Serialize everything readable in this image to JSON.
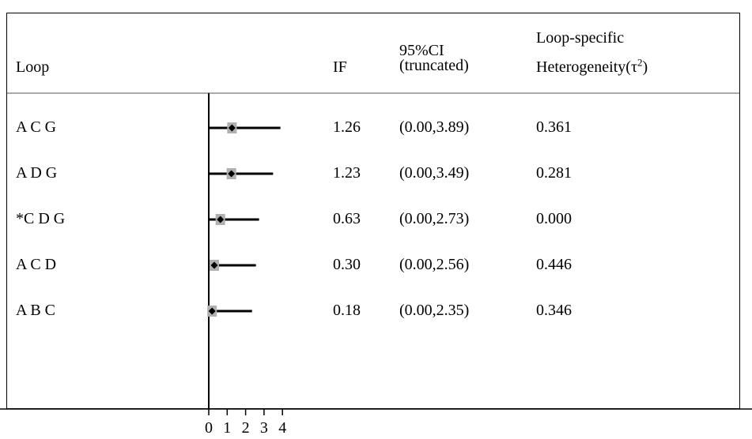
{
  "header": {
    "loop": "Loop",
    "if": "IF",
    "ci_line1": "95%CI",
    "ci_line2": "(truncated)",
    "het_line1": "Loop-specific",
    "het_line2": "Heterogeneity(τ",
    "het_sup": "2",
    "het_close": ")"
  },
  "chart_data": {
    "type": "forest",
    "xlim": [
      0,
      4
    ],
    "x_ticks": [
      "0",
      "1",
      "2",
      "3",
      "4"
    ],
    "rows": [
      {
        "loop": "A C G",
        "if": 1.26,
        "if_label": "1.26",
        "ci_low": 0.0,
        "ci_high": 3.89,
        "ci_label": "(0.00,3.89)",
        "tau2": "0.361"
      },
      {
        "loop": "A D G",
        "if": 1.23,
        "if_label": "1.23",
        "ci_low": 0.0,
        "ci_high": 3.49,
        "ci_label": "(0.00,3.49)",
        "tau2": "0.281"
      },
      {
        "loop": "*C D G",
        "if": 0.63,
        "if_label": "0.63",
        "ci_low": 0.0,
        "ci_high": 2.73,
        "ci_label": "(0.00,2.73)",
        "tau2": "0.000"
      },
      {
        "loop": "A C D",
        "if": 0.3,
        "if_label": "0.30",
        "ci_low": 0.0,
        "ci_high": 2.56,
        "ci_label": "(0.00,2.56)",
        "tau2": "0.446"
      },
      {
        "loop": "A B C",
        "if": 0.18,
        "if_label": "0.18",
        "ci_low": 0.0,
        "ci_high": 2.35,
        "ci_label": "(0.00,2.35)",
        "tau2": "0.346"
      }
    ]
  }
}
